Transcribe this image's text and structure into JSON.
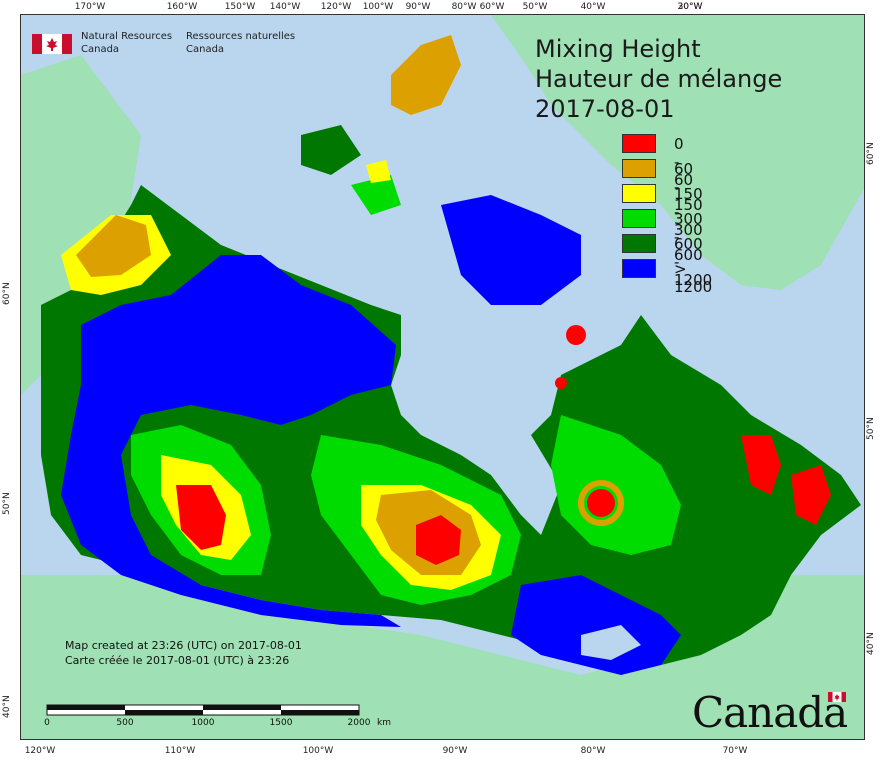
{
  "title": {
    "line1": "Mixing Height",
    "line2": "Hauteur de mélange",
    "line3": "2017-08-01"
  },
  "agency": {
    "en_line1": "Natural Resources",
    "en_line2": "Canada",
    "fr_line1": "Ressources naturelles",
    "fr_line2": "Canada"
  },
  "legend": [
    {
      "label": "0 - 60",
      "color": "#ff0000"
    },
    {
      "label": "60 - 150",
      "color": "#dca000"
    },
    {
      "label": "150 - 300",
      "color": "#ffff00"
    },
    {
      "label": "300 - 600",
      "color": "#00dc00"
    },
    {
      "label": "600 - 1200",
      "color": "#007800"
    },
    {
      "label": "> 1200",
      "color": "#0000ff"
    }
  ],
  "credits": {
    "line1": "Map created at 23:26 (UTC) on 2017-08-01",
    "line2": "Carte créée le 2017-08-01 (UTC) à 23:26"
  },
  "scale": {
    "labels": [
      "0",
      "500",
      "1000",
      "1500",
      "2000"
    ],
    "unit": "km"
  },
  "wordmark": "Canada",
  "ticks": {
    "top": [
      "170°W",
      "160°W",
      "150°W",
      "140°W",
      "120°W",
      "100°W",
      "90°W",
      "80°W",
      "60°W",
      "50°W",
      "40°W",
      "30°W",
      "20°W"
    ],
    "bottom": [
      "120°W",
      "110°W",
      "100°W",
      "90°W",
      "80°W",
      "70°W"
    ],
    "left": [
      "60°N",
      "50°N",
      "40°N"
    ],
    "right": [
      "60°N",
      "50°N",
      "40°N"
    ]
  },
  "colors": {
    "ocean": "#b9d6ee",
    "land_outside": "#9fe0b4",
    "ice": "#d4ecf0"
  }
}
